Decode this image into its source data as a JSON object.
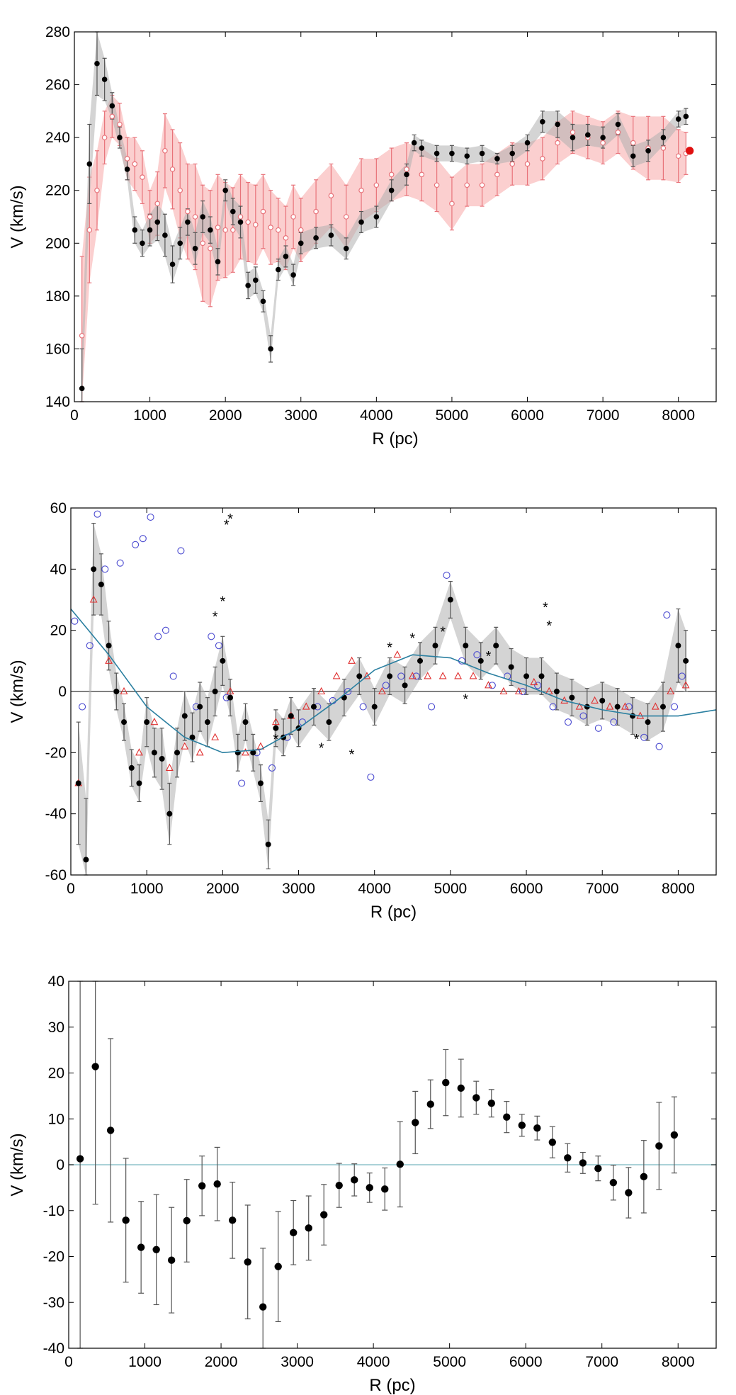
{
  "colors": {
    "black": "#000000",
    "gray_error": "#8c8c8c",
    "red": "#e8737a",
    "red_fill": "#f7a8a8",
    "blue": "#4a4ad0",
    "teal": "#2a7fa0",
    "light_teal": "#8fc4cc"
  },
  "chart_data": [
    {
      "type": "scatter",
      "title": "",
      "xlabel": "R (pc)",
      "ylabel": "V (km/s)",
      "xlim": [
        0,
        8500
      ],
      "ylim": [
        140,
        280
      ],
      "xticks": [
        "0",
        "1000",
        "2000",
        "3000",
        "4000",
        "5000",
        "6000",
        "7000",
        "8000"
      ],
      "yticks": [
        "140",
        "160",
        "180",
        "200",
        "220",
        "240",
        "260",
        "280"
      ],
      "series": [
        {
          "name": "black dots with gray error bars",
          "x": [
            100,
            200,
            300,
            400,
            500,
            600,
            700,
            800,
            900,
            1000,
            1100,
            1200,
            1300,
            1400,
            1500,
            1600,
            1700,
            1800,
            1900,
            2000,
            2100,
            2200,
            2300,
            2400,
            2500,
            2600,
            2700,
            2800,
            2900,
            3000,
            3200,
            3400,
            3600,
            3800,
            4000,
            4200,
            4400,
            4500,
            4600,
            4800,
            5000,
            5200,
            5400,
            5600,
            5800,
            6000,
            6200,
            6400,
            6600,
            6800,
            7000,
            7200,
            7400,
            7600,
            7800,
            8000,
            8100
          ],
          "y": [
            145,
            230,
            268,
            262,
            252,
            240,
            228,
            205,
            200,
            205,
            208,
            203,
            192,
            200,
            208,
            198,
            210,
            205,
            193,
            220,
            212,
            208,
            184,
            186,
            178,
            160,
            190,
            195,
            188,
            200,
            202,
            203,
            198,
            208,
            210,
            220,
            226,
            238,
            236,
            234,
            234,
            233,
            234,
            232,
            234,
            238,
            246,
            245,
            240,
            241,
            240,
            245,
            233,
            235,
            240,
            247,
            248
          ],
          "err": [
            15,
            15,
            12,
            8,
            5,
            4,
            4,
            5,
            5,
            6,
            7,
            8,
            7,
            6,
            5,
            6,
            6,
            5,
            5,
            4,
            5,
            6,
            5,
            5,
            4,
            5,
            4,
            4,
            4,
            4,
            4,
            4,
            4,
            4,
            4,
            4,
            4,
            3,
            3,
            3,
            3,
            3,
            3,
            2,
            3,
            3,
            4,
            5,
            5,
            4,
            4,
            4,
            4,
            4,
            3,
            3,
            3
          ]
        },
        {
          "name": "red open circles with pink error bars",
          "x": [
            100,
            200,
            300,
            400,
            500,
            600,
            700,
            800,
            900,
            1000,
            1100,
            1200,
            1300,
            1400,
            1500,
            1600,
            1700,
            1800,
            1900,
            2000,
            2100,
            2200,
            2300,
            2400,
            2500,
            2600,
            2700,
            2800,
            2900,
            3000,
            3200,
            3400,
            3600,
            3800,
            4000,
            4200,
            4400,
            4600,
            4800,
            5000,
            5200,
            5400,
            5600,
            5800,
            6000,
            6200,
            6400,
            6600,
            6800,
            7000,
            7200,
            7400,
            7600,
            7800,
            8000,
            8100
          ],
          "y": [
            165,
            205,
            220,
            240,
            248,
            245,
            232,
            230,
            225,
            210,
            215,
            235,
            228,
            220,
            212,
            210,
            200,
            198,
            206,
            205,
            205,
            210,
            208,
            207,
            212,
            206,
            205,
            202,
            210,
            205,
            212,
            218,
            210,
            220,
            222,
            226,
            228,
            226,
            222,
            215,
            222,
            222,
            226,
            230,
            230,
            232,
            238,
            242,
            240,
            238,
            242,
            238,
            236,
            236,
            233,
            234
          ],
          "err": [
            30,
            20,
            15,
            10,
            8,
            8,
            8,
            10,
            10,
            10,
            12,
            14,
            15,
            18,
            18,
            20,
            22,
            22,
            20,
            18,
            16,
            16,
            15,
            15,
            14,
            14,
            12,
            12,
            12,
            12,
            12,
            12,
            12,
            12,
            10,
            10,
            10,
            10,
            10,
            10,
            8,
            8,
            8,
            8,
            8,
            8,
            8,
            8,
            8,
            8,
            8,
            10,
            12,
            12,
            10,
            8
          ]
        },
        {
          "name": "red highlighted endpoint",
          "x": [
            8150
          ],
          "y": [
            235
          ]
        }
      ]
    },
    {
      "type": "scatter",
      "title": "",
      "xlabel": "R (pc)",
      "ylabel": "V (km/s)",
      "xlim": [
        0,
        8500
      ],
      "ylim": [
        -60,
        60
      ],
      "xticks": [
        "0",
        "1000",
        "2000",
        "3000",
        "4000",
        "5000",
        "6000",
        "7000",
        "8000"
      ],
      "yticks": [
        "-60",
        "-40",
        "-20",
        "0",
        "20",
        "40",
        "60"
      ],
      "series": [
        {
          "name": "black dots with gray error bars",
          "x": [
            100,
            200,
            300,
            400,
            500,
            600,
            700,
            800,
            900,
            1000,
            1100,
            1200,
            1300,
            1400,
            1500,
            1600,
            1700,
            1800,
            1900,
            2000,
            2100,
            2200,
            2300,
            2400,
            2500,
            2600,
            2700,
            2800,
            2900,
            3000,
            3200,
            3400,
            3600,
            3800,
            4000,
            4200,
            4400,
            4600,
            4800,
            5000,
            5200,
            5400,
            5600,
            5800,
            6000,
            6200,
            6400,
            6600,
            6800,
            7000,
            7200,
            7400,
            7600,
            7800,
            8000,
            8100
          ],
          "y": [
            -30,
            -55,
            40,
            35,
            15,
            0,
            -10,
            -25,
            -30,
            -10,
            -20,
            -22,
            -40,
            -20,
            -8,
            -15,
            -5,
            -10,
            0,
            10,
            -2,
            -20,
            -10,
            -20,
            -30,
            -50,
            -12,
            -15,
            -8,
            -12,
            -5,
            -10,
            -2,
            5,
            -5,
            5,
            2,
            10,
            15,
            30,
            15,
            10,
            15,
            8,
            5,
            5,
            0,
            -2,
            -5,
            -3,
            -5,
            -8,
            -10,
            -5,
            15,
            10
          ],
          "err": [
            20,
            20,
            15,
            10,
            8,
            6,
            6,
            6,
            6,
            8,
            8,
            10,
            10,
            8,
            8,
            8,
            8,
            8,
            8,
            8,
            6,
            6,
            6,
            6,
            6,
            8,
            6,
            6,
            6,
            6,
            6,
            6,
            6,
            6,
            6,
            6,
            6,
            6,
            6,
            6,
            6,
            6,
            6,
            6,
            6,
            6,
            6,
            6,
            6,
            6,
            6,
            6,
            6,
            8,
            12,
            10
          ]
        },
        {
          "name": "blue open circles",
          "x": [
            50,
            150,
            250,
            350,
            450,
            650,
            850,
            950,
            1050,
            1150,
            1250,
            1350,
            1450,
            1650,
            1850,
            1950,
            2050,
            2250,
            2450,
            2650,
            2850,
            3050,
            3250,
            3450,
            3650,
            3850,
            3950,
            4150,
            4350,
            4550,
            4750,
            4950,
            5150,
            5350,
            5550,
            5750,
            5950,
            6150,
            6350,
            6550,
            6750,
            6950,
            7150,
            7350,
            7550,
            7750,
            7850,
            7950,
            8050
          ],
          "y": [
            23,
            -5,
            15,
            58,
            40,
            42,
            48,
            50,
            57,
            18,
            20,
            5,
            46,
            -5,
            18,
            15,
            -2,
            -30,
            -20,
            -25,
            -15,
            -10,
            -5,
            -3,
            0,
            -5,
            -28,
            2,
            5,
            5,
            -5,
            38,
            10,
            12,
            2,
            5,
            0,
            2,
            -5,
            -10,
            -8,
            -12,
            -10,
            -5,
            -15,
            -18,
            25,
            -5,
            5
          ]
        },
        {
          "name": "red open triangles",
          "x": [
            100,
            300,
            500,
            700,
            900,
            1100,
            1300,
            1500,
            1700,
            1900,
            2100,
            2300,
            2500,
            2700,
            2900,
            3100,
            3300,
            3500,
            3700,
            3900,
            4100,
            4300,
            4500,
            4700,
            4900,
            5100,
            5300,
            5500,
            5700,
            5900,
            6100,
            6300,
            6500,
            6700,
            6900,
            7100,
            7300,
            7500,
            7700,
            7900,
            8100
          ],
          "y": [
            -30,
            30,
            10,
            0,
            -20,
            -10,
            -25,
            -18,
            -20,
            -15,
            0,
            -20,
            -18,
            -10,
            -8,
            -5,
            0,
            5,
            10,
            5,
            0,
            12,
            5,
            5,
            5,
            5,
            5,
            2,
            0,
            0,
            3,
            0,
            -3,
            -5,
            -3,
            -5,
            -5,
            -8,
            -5,
            0,
            2
          ]
        },
        {
          "name": "black asterisks",
          "x": [
            1900,
            2000,
            2050,
            2100,
            2400,
            2700,
            3300,
            3700,
            4200,
            4500,
            4900,
            5200,
            5500,
            6250,
            6300,
            7450
          ],
          "y": [
            25,
            30,
            55,
            57,
            -20,
            -15,
            -18,
            -20,
            15,
            18,
            20,
            -2,
            12,
            28,
            22,
            -15
          ]
        },
        {
          "name": "teal model curve",
          "x": [
            0,
            500,
            1000,
            1500,
            2000,
            2500,
            3000,
            3500,
            4000,
            4500,
            5000,
            5500,
            6000,
            6500,
            7000,
            7500,
            8000,
            8500
          ],
          "y": [
            27,
            12,
            -5,
            -15,
            -20,
            -19,
            -12,
            -3,
            7,
            12,
            11,
            6,
            2,
            -3,
            -6,
            -8,
            -8,
            -6
          ]
        }
      ]
    },
    {
      "type": "scatter",
      "title": "",
      "xlabel": "R (pc)",
      "ylabel": "V (km/s)",
      "xlim": [
        0,
        8500
      ],
      "ylim": [
        -40,
        40
      ],
      "xticks": [
        "0",
        "1000",
        "2000",
        "3000",
        "4000",
        "5000",
        "6000",
        "7000",
        "8000"
      ],
      "yticks": [
        "-40",
        "-30",
        "-20",
        "-10",
        "0",
        "10",
        "20",
        "30",
        "40"
      ],
      "zero_line": 0,
      "series": [
        {
          "name": "binned mean velocity",
          "x": [
            150,
            350,
            550,
            750,
            950,
            1150,
            1350,
            1550,
            1750,
            1950,
            2150,
            2350,
            2550,
            2750,
            2950,
            3150,
            3350,
            3550,
            3750,
            3950,
            4150,
            4350,
            4550,
            4750,
            4950,
            5150,
            5350,
            5550,
            5750,
            5950,
            6150,
            6350,
            6550,
            6750,
            6950,
            7150,
            7350,
            7550,
            7750,
            7950
          ],
          "y": [
            1.3,
            21.4,
            7.5,
            -12.1,
            -18,
            -18.5,
            -20.8,
            -12.2,
            -4.6,
            -4.2,
            -12.1,
            -21.2,
            -31,
            -22.2,
            -14.8,
            -13.8,
            -10.9,
            -4.5,
            -3.3,
            -5,
            -5.3,
            0.1,
            9.2,
            13.2,
            17.9,
            16.7,
            14.6,
            13.4,
            10.4,
            8.6,
            8,
            4.9,
            1.5,
            0.4,
            -0.8,
            -3.9,
            -6.1,
            -2.6,
            4.1,
            6.5
          ],
          "err": [
            55,
            30,
            20,
            13.5,
            10,
            12,
            11.5,
            9,
            6.5,
            8,
            8.3,
            12.4,
            12.8,
            12,
            7,
            7,
            6.6,
            4.8,
            3.5,
            3.2,
            4.6,
            9.3,
            6.8,
            5.3,
            7.2,
            6.3,
            3.6,
            3,
            3.4,
            2.4,
            2.6,
            3.4,
            3.1,
            2.3,
            2.7,
            3.8,
            5.5,
            7.9,
            9.5,
            8.3
          ]
        }
      ]
    }
  ]
}
